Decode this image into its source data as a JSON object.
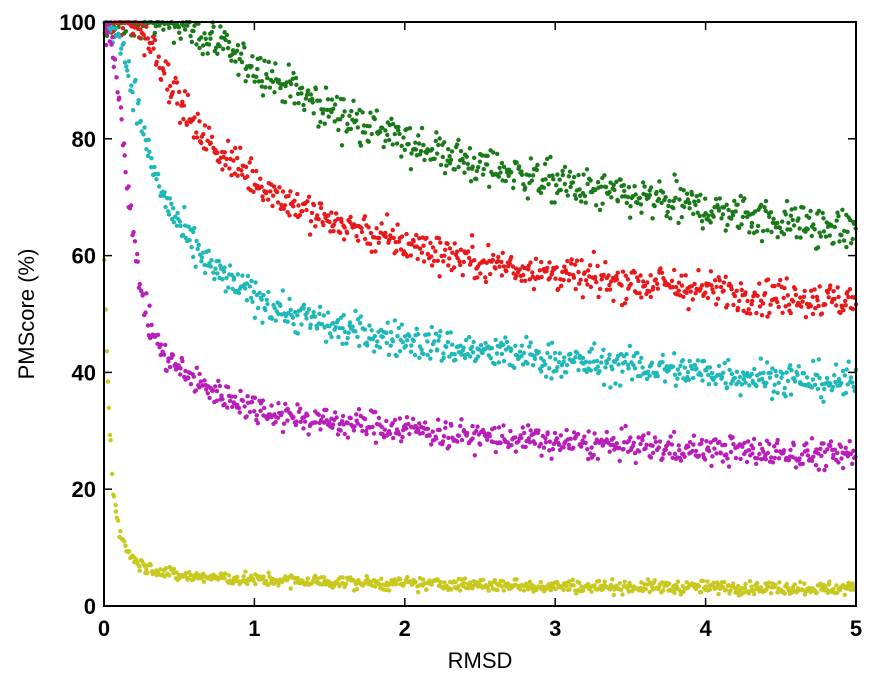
{
  "chart_data": {
    "type": "scatter",
    "xlabel": "RMSD",
    "ylabel": "PMScore (%)",
    "xlim": [
      0,
      5
    ],
    "ylim": [
      0,
      100
    ],
    "xticks": [
      "0",
      "1",
      "2",
      "3",
      "4",
      "5"
    ],
    "yticks": [
      "0",
      "20",
      "40",
      "60",
      "80",
      "100"
    ],
    "grid": false,
    "legend": "none",
    "series": [
      {
        "color": "#1a7a1a",
        "x": [
          0.0,
          0.25,
          0.5,
          0.75,
          1.0,
          1.25,
          1.5,
          1.75,
          2.0,
          2.25,
          2.5,
          2.75,
          3.0,
          3.25,
          3.5,
          3.75,
          4.0,
          4.25,
          4.5,
          4.75,
          5.0
        ],
        "y": [
          100,
          100,
          100,
          96,
          92,
          88.5,
          85,
          82,
          79.5,
          77.5,
          75.5,
          74,
          72.5,
          71,
          70,
          69,
          68,
          67,
          66,
          65,
          64
        ],
        "spread": 2.5
      },
      {
        "color": "#e8191a",
        "x": [
          0.0,
          0.1,
          0.2,
          0.3,
          0.4,
          0.5,
          0.6,
          0.75,
          1.0,
          1.25,
          1.5,
          1.75,
          2.0,
          2.25,
          2.5,
          2.75,
          3.0,
          3.25,
          3.5,
          3.75,
          4.0,
          4.25,
          4.5,
          4.75,
          5.0
        ],
        "y": [
          100,
          100,
          100,
          97,
          92,
          87,
          82,
          78,
          73,
          69,
          66,
          64,
          62,
          60.5,
          59,
          58,
          57,
          56,
          55.5,
          55,
          54,
          53.5,
          53,
          52.5,
          52
        ],
        "spread": 2.3
      },
      {
        "color": "#1fb8b8",
        "x": [
          0.0,
          0.1,
          0.2,
          0.3,
          0.4,
          0.5,
          0.6,
          0.75,
          1.0,
          1.25,
          1.5,
          1.75,
          2.0,
          2.25,
          2.5,
          2.75,
          3.0,
          3.25,
          3.5,
          3.75,
          4.0,
          4.25,
          4.5,
          4.75,
          5.0
        ],
        "y": [
          100,
          98,
          88,
          77,
          70,
          65,
          61,
          57,
          53,
          50,
          48,
          46.5,
          45.5,
          44.5,
          43.5,
          43,
          42,
          41.5,
          41,
          40.5,
          40,
          39.5,
          39,
          38.5,
          38
        ],
        "spread": 2.2
      },
      {
        "color": "#b81fb8",
        "x": [
          0.0,
          0.05,
          0.1,
          0.15,
          0.2,
          0.25,
          0.3,
          0.4,
          0.5,
          0.6,
          0.75,
          1.0,
          1.25,
          1.5,
          1.75,
          2.0,
          2.25,
          2.5,
          2.75,
          3.0,
          3.25,
          3.5,
          3.75,
          4.0,
          4.25,
          4.5,
          4.75,
          5.0
        ],
        "y": [
          100,
          97,
          88,
          74,
          62,
          54,
          48,
          43,
          40.5,
          38.5,
          36.5,
          34,
          32.5,
          31.5,
          31,
          30.5,
          29.5,
          29,
          28.5,
          28,
          27.7,
          27.4,
          27,
          26.8,
          26.5,
          26.2,
          26,
          25.5
        ],
        "spread": 1.8
      },
      {
        "color": "#c8c81e",
        "x": [
          0.0,
          0.03,
          0.06,
          0.1,
          0.15,
          0.2,
          0.3,
          0.4,
          0.5,
          0.75,
          1.0,
          1.5,
          2.0,
          2.5,
          3.0,
          3.5,
          4.0,
          4.5,
          5.0
        ],
        "y": [
          60,
          35,
          20,
          13,
          10,
          8,
          6.5,
          5.8,
          5.2,
          4.8,
          4.5,
          4.1,
          3.8,
          3.6,
          3.4,
          3.3,
          3.2,
          3.1,
          3.0
        ],
        "spread": 0.8
      }
    ]
  }
}
